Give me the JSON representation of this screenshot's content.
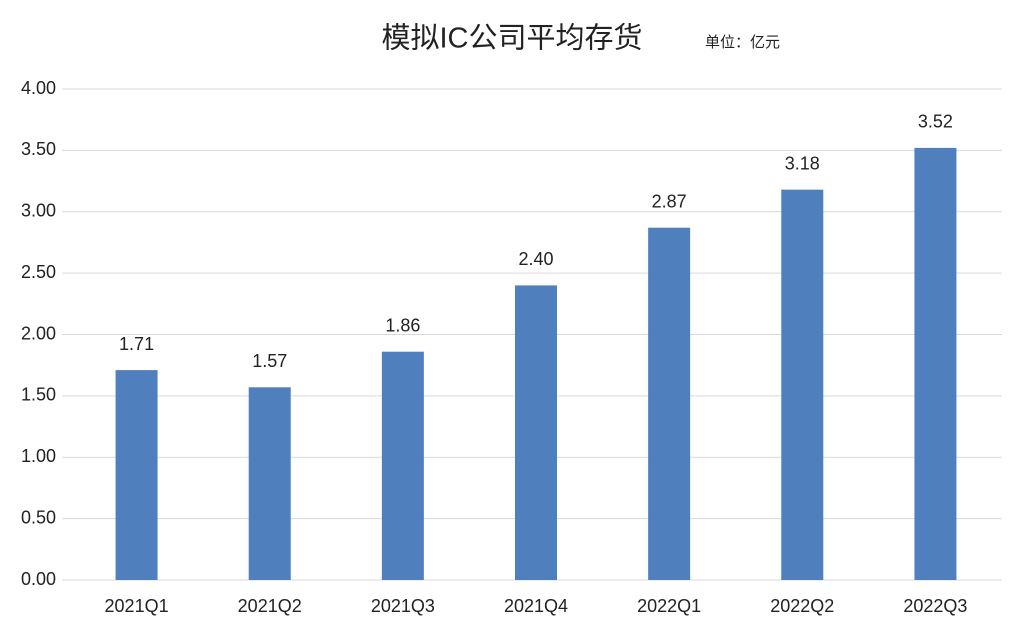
{
  "chart_data": {
    "type": "bar",
    "title": "模拟IC公司平均存货",
    "subtitle": "单位：亿元",
    "categories": [
      "2021Q1",
      "2021Q2",
      "2021Q3",
      "2021Q4",
      "2022Q1",
      "2022Q2",
      "2022Q3"
    ],
    "values": [
      1.71,
      1.57,
      1.86,
      2.4,
      2.87,
      3.18,
      3.52
    ],
    "value_labels": [
      "1.71",
      "1.57",
      "1.86",
      "2.40",
      "2.87",
      "3.18",
      "3.52"
    ],
    "color": "#4f7fbd",
    "ylim": [
      0,
      4
    ],
    "yticks": [
      {
        "value": 0,
        "label": "0.00"
      },
      {
        "value": 0.5,
        "label": "0.50"
      },
      {
        "value": 1,
        "label": "1.00"
      },
      {
        "value": 1.5,
        "label": "1.50"
      },
      {
        "value": 2,
        "label": "2.00"
      },
      {
        "value": 2.5,
        "label": "2.50"
      },
      {
        "value": 3,
        "label": "3.00"
      },
      {
        "value": 3.5,
        "label": "3.50"
      },
      {
        "value": 4,
        "label": "4.00"
      }
    ],
    "grid": true
  }
}
